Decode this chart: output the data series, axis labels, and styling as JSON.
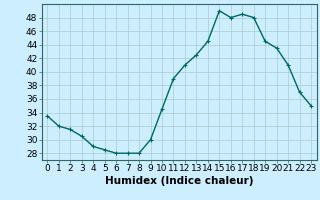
{
  "x": [
    0,
    1,
    2,
    3,
    4,
    5,
    6,
    7,
    8,
    9,
    10,
    11,
    12,
    13,
    14,
    15,
    16,
    17,
    18,
    19,
    20,
    21,
    22,
    23
  ],
  "y": [
    33.5,
    32.0,
    31.5,
    30.5,
    29.0,
    28.5,
    28.0,
    28.0,
    28.0,
    30.0,
    34.5,
    39.0,
    41.0,
    42.5,
    44.5,
    49.0,
    48.0,
    48.5,
    48.0,
    44.5,
    43.5,
    41.0,
    37.0,
    35.0
  ],
  "line_color": "#006666",
  "marker": "+",
  "marker_size": 3.5,
  "bg_color": "#cceeff",
  "grid_color": "#aacccc",
  "xlabel": "Humidex (Indice chaleur)",
  "xlabel_fontsize": 7.5,
  "tick_fontsize": 6.5,
  "ylim": [
    27,
    50
  ],
  "yticks": [
    28,
    30,
    32,
    34,
    36,
    38,
    40,
    42,
    44,
    46,
    48
  ],
  "xlim": [
    -0.5,
    23.5
  ],
  "xticks": [
    0,
    1,
    2,
    3,
    4,
    5,
    6,
    7,
    8,
    9,
    10,
    11,
    12,
    13,
    14,
    15,
    16,
    17,
    18,
    19,
    20,
    21,
    22,
    23
  ],
  "axis_color": "#336666",
  "linewidth": 1.0
}
